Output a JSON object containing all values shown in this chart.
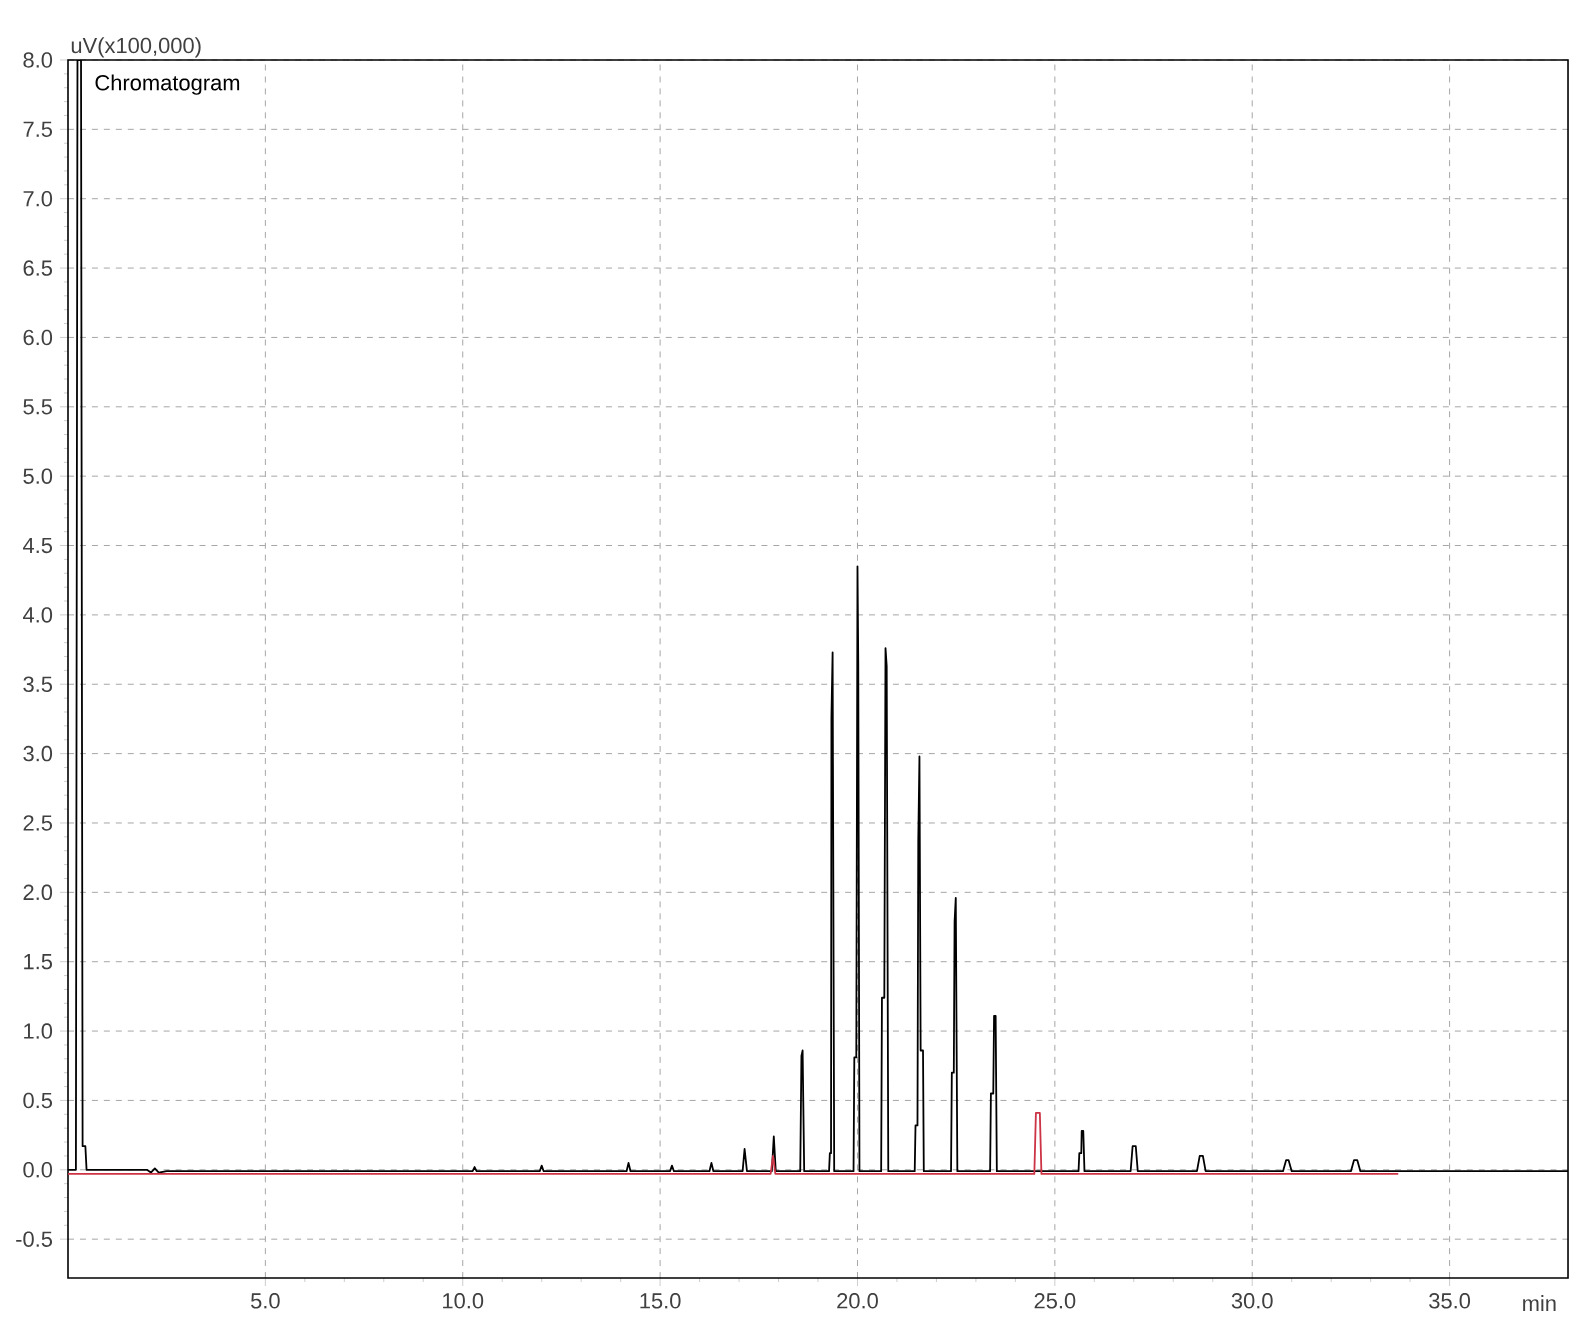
{
  "chart_data": {
    "type": "line",
    "title": "Chromatogram",
    "xlabel": "min",
    "ylabel": "uV(x100,000)",
    "xlim": [
      0,
      38
    ],
    "ylim": [
      -0.78,
      8.0
    ],
    "xticks": [
      {
        "value": 5,
        "label": "5.0"
      },
      {
        "value": 10,
        "label": "10.0"
      },
      {
        "value": 15,
        "label": "15.0"
      },
      {
        "value": 20,
        "label": "20.0"
      },
      {
        "value": 25,
        "label": "25.0"
      },
      {
        "value": 30,
        "label": "30.0"
      },
      {
        "value": 35,
        "label": "35.0"
      }
    ],
    "yticks": [
      {
        "value": -0.5,
        "label": "-0.5"
      },
      {
        "value": 0,
        "label": "0.0"
      },
      {
        "value": 0.5,
        "label": "0.5"
      },
      {
        "value": 1,
        "label": "1.0"
      },
      {
        "value": 1.5,
        "label": "1.5"
      },
      {
        "value": 2,
        "label": "2.0"
      },
      {
        "value": 2.5,
        "label": "2.5"
      },
      {
        "value": 3,
        "label": "3.0"
      },
      {
        "value": 3.5,
        "label": "3.5"
      },
      {
        "value": 4,
        "label": "4.0"
      },
      {
        "value": 4.5,
        "label": "4.5"
      },
      {
        "value": 5,
        "label": "5.0"
      },
      {
        "value": 5.5,
        "label": "5.5"
      },
      {
        "value": 6,
        "label": "6.0"
      },
      {
        "value": 6.5,
        "label": "6.5"
      },
      {
        "value": 7,
        "label": "7.0"
      },
      {
        "value": 7.5,
        "label": "7.5"
      },
      {
        "value": 8,
        "label": "8.0"
      }
    ],
    "grid": true,
    "marker": "none",
    "line_style": "solid",
    "series": [
      {
        "color": "#000000",
        "x": [
          0.0,
          0.2,
          0.24,
          0.33,
          0.37,
          0.44,
          0.47,
          2.0,
          2.1,
          2.2,
          2.3,
          2.5,
          10.25,
          10.3,
          10.35,
          11.95,
          12.0,
          12.05,
          14.15,
          14.2,
          14.25,
          15.25,
          15.3,
          15.35,
          16.25,
          16.3,
          16.35,
          17.09,
          17.14,
          17.2,
          17.83,
          17.88,
          17.93,
          18.55,
          18.58,
          18.61,
          18.65,
          19.28,
          19.3,
          19.33,
          19.34,
          19.37,
          19.41,
          19.9,
          19.92,
          19.97,
          20.0,
          20.02,
          20.05,
          20.6,
          20.62,
          20.68,
          20.71,
          20.74,
          20.78,
          21.45,
          21.47,
          21.52,
          21.54,
          21.57,
          21.6,
          21.66,
          21.68,
          22.37,
          22.39,
          22.44,
          22.46,
          22.49,
          22.53,
          23.36,
          23.38,
          23.44,
          23.46,
          23.5,
          23.53,
          25.6,
          25.62,
          25.67,
          25.68,
          25.72,
          25.75,
          26.92,
          26.97,
          27.05,
          27.1,
          28.6,
          28.67,
          28.75,
          28.82,
          30.78,
          30.86,
          30.92,
          31.0,
          32.5,
          32.58,
          32.66,
          32.74,
          38.0
        ],
        "values": [
          0.0,
          0.0,
          8.0,
          8.0,
          0.17,
          0.17,
          0.0,
          0.0,
          -0.02,
          0.01,
          -0.02,
          -0.01,
          -0.01,
          0.02,
          -0.01,
          -0.01,
          0.03,
          -0.01,
          -0.01,
          0.05,
          -0.01,
          -0.01,
          0.03,
          -0.01,
          -0.01,
          0.05,
          -0.01,
          -0.01,
          0.15,
          -0.01,
          -0.01,
          0.24,
          -0.01,
          -0.01,
          0.82,
          0.86,
          -0.01,
          -0.01,
          0.12,
          0.12,
          3.26,
          3.73,
          -0.01,
          -0.01,
          0.81,
          0.81,
          4.35,
          3.65,
          -0.01,
          -0.01,
          1.24,
          1.24,
          3.76,
          3.63,
          -0.01,
          -0.01,
          0.32,
          0.32,
          2.37,
          2.98,
          0.86,
          0.86,
          -0.01,
          -0.01,
          0.7,
          0.7,
          1.79,
          1.96,
          -0.01,
          -0.01,
          0.55,
          0.55,
          1.11,
          1.11,
          -0.01,
          -0.01,
          0.12,
          0.12,
          0.28,
          0.28,
          -0.01,
          -0.01,
          0.17,
          0.17,
          -0.01,
          -0.01,
          0.1,
          0.1,
          -0.01,
          -0.01,
          0.07,
          0.07,
          -0.01,
          -0.01,
          0.07,
          0.07,
          -0.01,
          -0.01
        ]
      },
      {
        "color": "#cc3344",
        "x": [
          0.0,
          17.8,
          17.86,
          17.92,
          24.48,
          24.52,
          24.62,
          24.66,
          33.7
        ],
        "values": [
          -0.03,
          -0.03,
          0.1,
          -0.03,
          -0.03,
          0.41,
          0.41,
          -0.03,
          -0.03
        ]
      }
    ]
  }
}
